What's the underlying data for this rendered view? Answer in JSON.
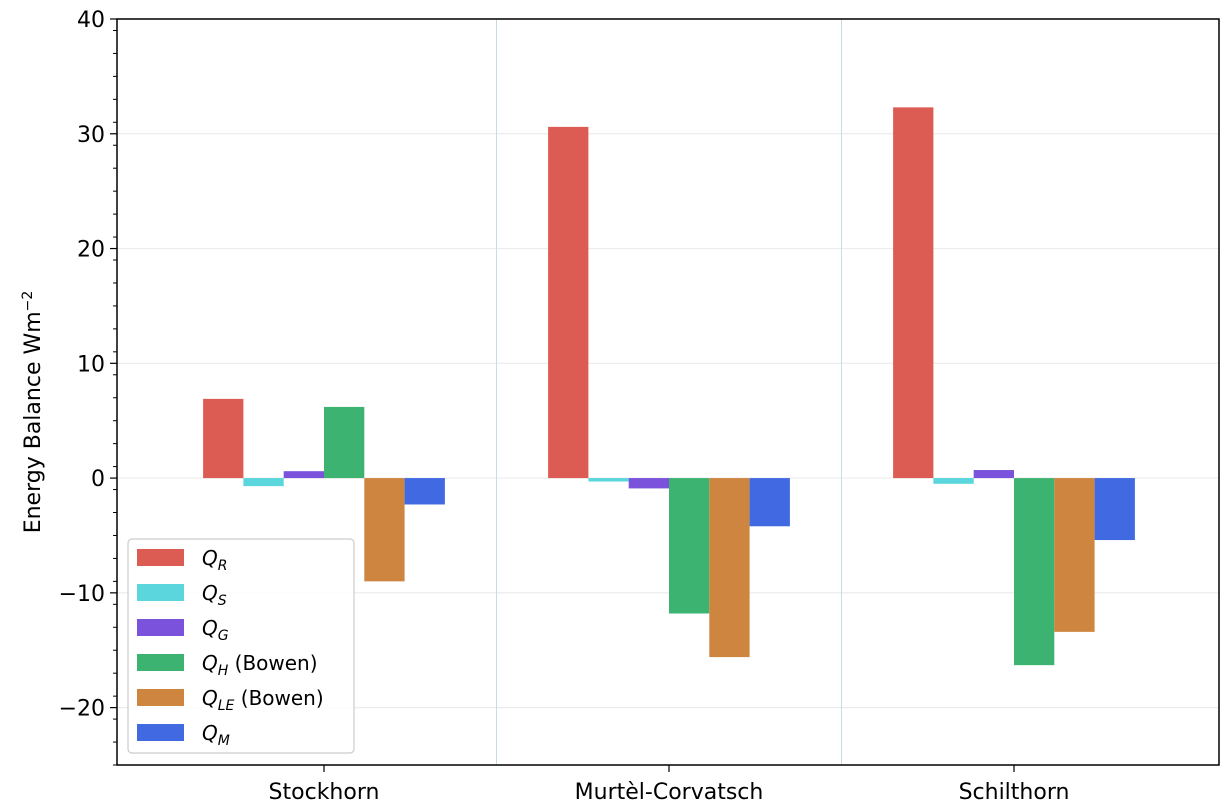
{
  "chart_data": {
    "type": "bar",
    "title": "",
    "xlabel": "",
    "ylabel": "Energy Balance Wm",
    "ylabel_superscript": "−2",
    "ylim": [
      -25,
      40
    ],
    "yticks": [
      -20,
      -10,
      0,
      10,
      20,
      30,
      40
    ],
    "ytick_labels": [
      "−20",
      "−10",
      "0",
      "10",
      "20",
      "30",
      "40"
    ],
    "grid": true,
    "legend_position": "lower-left",
    "categories": [
      "Stockhorn",
      "Murtèl-Corvatsch",
      "Schilthorn"
    ],
    "series": [
      {
        "sym": "Q",
        "sub": "R",
        "suffix": "",
        "color": "#dc5c53",
        "values": [
          6.9,
          30.6,
          32.3
        ]
      },
      {
        "sym": "Q",
        "sub": "S",
        "suffix": "",
        "color": "#5ad6dc",
        "values": [
          -0.7,
          -0.3,
          -0.5
        ]
      },
      {
        "sym": "Q",
        "sub": "G",
        "suffix": "",
        "color": "#7a52db",
        "values": [
          0.6,
          -0.9,
          0.7
        ]
      },
      {
        "sym": "Q",
        "sub": "H",
        "suffix": " (Bowen)",
        "color": "#3cb371",
        "values": [
          6.2,
          -11.8,
          -16.3
        ]
      },
      {
        "sym": "Q",
        "sub": "LE",
        "suffix": " (Bowen)",
        "color": "#cd853f",
        "values": [
          -9.0,
          -15.6,
          -13.4
        ]
      },
      {
        "sym": "Q",
        "sub": "M",
        "suffix": "",
        "color": "#4169e1",
        "values": [
          -2.3,
          -4.2,
          -5.4
        ]
      }
    ]
  }
}
